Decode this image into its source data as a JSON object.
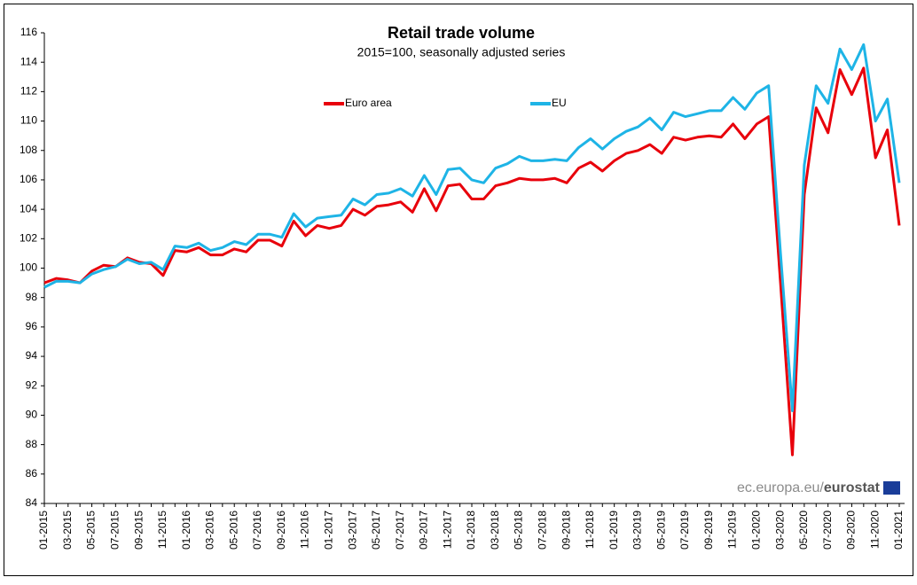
{
  "chart_data": {
    "type": "line",
    "title": "Retail trade volume",
    "subtitle": "2015=100, seasonally adjusted series",
    "categories": [
      "01-2015",
      null,
      "03-2015",
      null,
      "05-2015",
      null,
      "07-2015",
      null,
      "09-2015",
      null,
      "11-2015",
      null,
      "01-2016",
      null,
      "03-2016",
      null,
      "05-2016",
      null,
      "07-2016",
      null,
      "09-2016",
      null,
      "11-2016",
      null,
      "01-2017",
      null,
      "03-2017",
      null,
      "05-2017",
      null,
      "07-2017",
      null,
      "09-2017",
      null,
      "11-2017",
      null,
      "01-2018",
      null,
      "03-2018",
      null,
      "05-2018",
      null,
      "07-2018",
      null,
      "09-2018",
      null,
      "11-2018",
      null,
      "01-2019",
      null,
      "03-2019",
      null,
      "05-2019",
      null,
      "07-2019",
      null,
      "09-2019",
      null,
      "11-2019",
      null,
      "01-2020",
      null,
      "03-2020",
      null,
      "05-2020",
      null,
      "07-2020",
      null,
      "09-2020",
      null,
      "11-2020",
      null,
      "01-2021"
    ],
    "series": [
      {
        "name": "Euro area",
        "color": "#e8000b",
        "values": [
          99.0,
          99.3,
          99.2,
          99.0,
          99.8,
          100.2,
          100.1,
          100.7,
          100.4,
          100.3,
          99.5,
          101.2,
          101.1,
          101.4,
          100.9,
          100.9,
          101.3,
          101.1,
          101.9,
          101.9,
          101.5,
          103.2,
          102.2,
          102.9,
          102.7,
          102.9,
          104.0,
          103.6,
          104.2,
          104.3,
          104.5,
          103.8,
          105.4,
          103.9,
          105.6,
          105.7,
          104.7,
          104.7,
          105.6,
          105.8,
          106.1,
          106.0,
          106.0,
          106.1,
          105.8,
          106.8,
          107.2,
          106.6,
          107.3,
          107.8,
          108.0,
          108.4,
          107.8,
          108.9,
          108.7,
          108.9,
          109.0,
          108.9,
          109.8,
          108.8,
          109.8,
          110.3,
          99.0,
          87.3,
          105.0,
          110.9,
          109.2,
          113.5,
          111.8,
          113.6,
          107.5,
          109.4,
          102.9
        ]
      },
      {
        "name": "EU",
        "color": "#1eb4e6",
        "values": [
          98.7,
          99.1,
          99.1,
          99.0,
          99.6,
          99.9,
          100.1,
          100.6,
          100.3,
          100.4,
          99.9,
          101.5,
          101.4,
          101.7,
          101.2,
          101.4,
          101.8,
          101.6,
          102.3,
          102.3,
          102.1,
          103.7,
          102.8,
          103.4,
          103.5,
          103.6,
          104.7,
          104.3,
          105.0,
          105.1,
          105.4,
          104.9,
          106.3,
          105.0,
          106.7,
          106.8,
          106.0,
          105.8,
          106.8,
          107.1,
          107.6,
          107.3,
          107.3,
          107.4,
          107.3,
          108.2,
          108.8,
          108.1,
          108.8,
          109.3,
          109.6,
          110.2,
          109.4,
          110.6,
          110.3,
          110.5,
          110.7,
          110.7,
          111.6,
          110.8,
          111.9,
          112.4,
          101.0,
          90.3,
          107.0,
          112.4,
          111.2,
          114.9,
          113.5,
          115.2,
          110.0,
          111.5,
          105.8
        ]
      }
    ],
    "ylim": [
      84,
      116
    ],
    "yticks": [
      84,
      86,
      88,
      90,
      92,
      94,
      96,
      98,
      100,
      102,
      104,
      106,
      108,
      110,
      112,
      114,
      116
    ],
    "grid": false,
    "legend": "top",
    "watermark": {
      "site": "ec.europa.eu/",
      "brand": "eurostat"
    }
  }
}
